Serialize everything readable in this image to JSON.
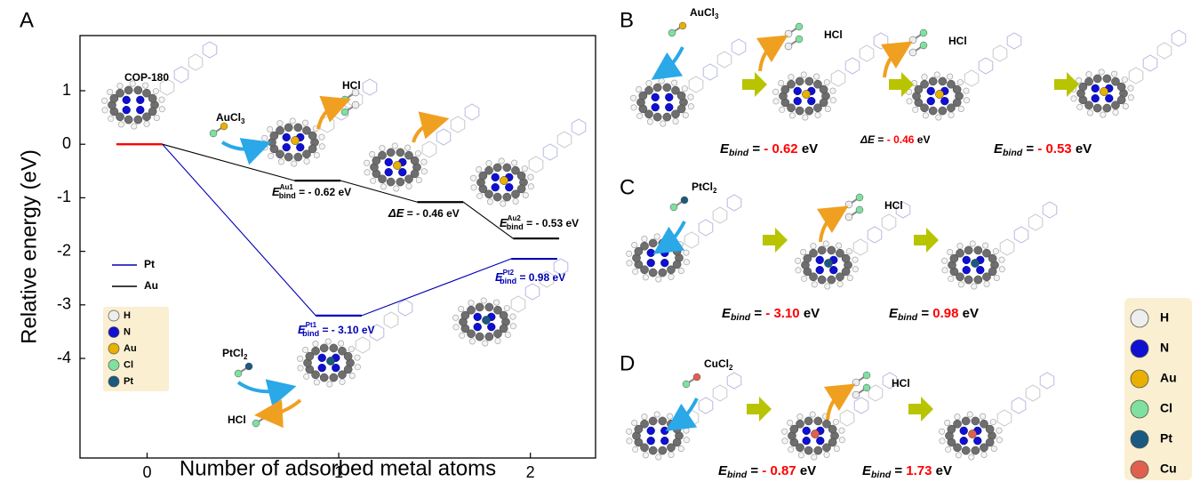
{
  "chart_data": {
    "type": "energy-levels",
    "panel_label": "A",
    "x_label": "Number of adsorbed metal atoms",
    "y_label": "Relative energy (eV)",
    "xlim": [
      -0.35,
      2.34
    ],
    "xticks": [
      0,
      1,
      2
    ],
    "ylim": [
      -5.86,
      2.03
    ],
    "yticks": [
      1,
      0,
      -1,
      -2,
      -3,
      -4
    ],
    "start_color": "#ff0000",
    "legend_position": "lower left",
    "series": [
      {
        "name": "Pt",
        "color": "#0000b4",
        "x": [
          -0.04,
          1.0,
          2.02
        ],
        "values": [
          0,
          -3.2,
          -2.14
        ]
      },
      {
        "name": "Au",
        "color": "#000000",
        "x": [
          -0.04,
          0.89,
          1.53,
          2.03
        ],
        "values": [
          0,
          -0.68,
          -1.08,
          -1.76
        ]
      }
    ],
    "annotations": [
      {
        "text": "COP-180"
      },
      {
        "base": "AuCl",
        "sub": "3"
      },
      {
        "text": "HCl"
      },
      {
        "base": "PtCl",
        "sub": "2"
      },
      {
        "text": "HCl"
      },
      {
        "symbol": "E",
        "sub": "bind",
        "sup": "Au1",
        "text": " = - 0.62 eV",
        "color": "#000000"
      },
      {
        "symbol": "ΔE",
        "text": " = - 0.46 eV",
        "color": "#000000"
      },
      {
        "symbol": "E",
        "sub": "bind",
        "sup": "Au2",
        "text": " = - 0.53 eV",
        "color": "#000000"
      },
      {
        "symbol": "E",
        "sub": "bind",
        "sup": "Pt1",
        "text": " = - 3.10 eV",
        "color": "#0000b4"
      },
      {
        "symbol": "E",
        "sub": "bind",
        "sup": "Pt2",
        "text": " = 0.98 eV",
        "color": "#0000b4"
      }
    ],
    "elements": [
      {
        "name": "H",
        "color": "#eeeeee"
      },
      {
        "name": "N",
        "color": "#1010d0"
      },
      {
        "name": "Au",
        "color": "#e8b000"
      },
      {
        "name": "Cl",
        "color": "#7fe0a0"
      },
      {
        "name": "Pt",
        "color": "#1a5a80"
      }
    ]
  },
  "value_color": "#ff0000",
  "panels": [
    {
      "label": "B",
      "reagent": {
        "base": "AuCl",
        "sub": "3"
      },
      "byproducts": [
        "HCl",
        "HCl"
      ],
      "energies": [
        {
          "symbol": "E",
          "sub": "bind",
          "op": " = ",
          "value": "- 0.62",
          "unit": " eV"
        },
        {
          "symbol": "ΔE",
          "op": " = ",
          "value": "- 0.46",
          "unit": " eV"
        },
        {
          "symbol": "E",
          "sub": "bind",
          "op": " = ",
          "value": "- 0.53",
          "unit": " eV"
        }
      ]
    },
    {
      "label": "C",
      "reagent": {
        "base": "PtCl",
        "sub": "2"
      },
      "byproducts": [
        "HCl"
      ],
      "energies": [
        {
          "symbol": "E",
          "sub": "bind",
          "op": " = ",
          "value": "- 3.10",
          "unit": " eV"
        },
        {
          "symbol": "E",
          "sub": "bind",
          "op": " = ",
          "value": "0.98",
          "unit": " eV"
        }
      ]
    },
    {
      "label": "D",
      "reagent": {
        "base": "CuCl",
        "sub": "2"
      },
      "byproducts": [
        "HCl"
      ],
      "energies": [
        {
          "symbol": "E",
          "sub": "bind",
          "op": " = ",
          "value": "- 0.87",
          "unit": " eV"
        },
        {
          "symbol": "E",
          "sub": "bind",
          "op": " = ",
          "value": "1.73",
          "unit": " eV"
        }
      ]
    }
  ],
  "element_legend": [
    {
      "name": "H",
      "color": "#eeeeee"
    },
    {
      "name": "N",
      "color": "#1010d0"
    },
    {
      "name": "Au",
      "color": "#e8b000"
    },
    {
      "name": "Cl",
      "color": "#7fe0a0"
    },
    {
      "name": "Pt",
      "color": "#1a5a80"
    },
    {
      "name": "Cu",
      "color": "#e06050"
    }
  ]
}
